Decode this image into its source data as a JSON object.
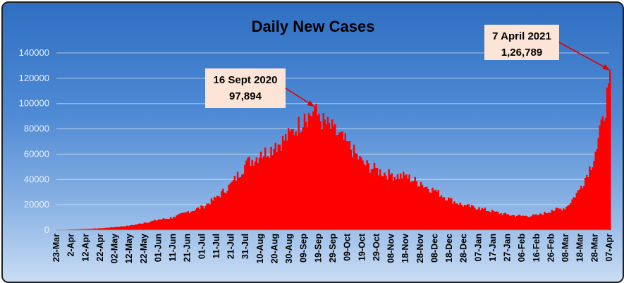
{
  "chart_data": {
    "type": "bar",
    "title": "Daily New Cases",
    "xlabel": "",
    "ylabel": "",
    "ylim": [
      0,
      140000
    ],
    "yticks": [
      0,
      20000,
      40000,
      60000,
      80000,
      100000,
      120000,
      140000
    ],
    "ytick_labels": [
      "0",
      "20000",
      "40000",
      "60000",
      "80000",
      "100000",
      "120000",
      "140000"
    ],
    "grid": true,
    "bar_color": "#ff0000",
    "x_start": "2020-03-23",
    "x_end": "2021-04-07",
    "x_tick_labels": [
      "23-Mar",
      "2-Apr",
      "12-Apr",
      "22-Apr",
      "02-May",
      "12-May",
      "22-May",
      "01-Jun",
      "11-Jun",
      "21-Jun",
      "01-Jul",
      "11-Jul",
      "21-Jul",
      "31-Jul",
      "10-Aug",
      "20-Aug",
      "30-Aug",
      "09-Sep",
      "19-Sep",
      "29-Sep",
      "09-Oct",
      "19-Oct",
      "29-Oct",
      "08-Nov",
      "18-Nov",
      "28-Nov",
      "08-Dec",
      "18-Dec",
      "28-Dec",
      "07-Jan",
      "17-Jan",
      "27-Jan",
      "06-Feb",
      "16-Feb",
      "26-Feb",
      "08-Mar",
      "18-Mar",
      "28-Mar",
      "07-Apr"
    ],
    "series_trend_points": [
      {
        "date": "2020-03-23",
        "value": 100
      },
      {
        "date": "2020-04-02",
        "value": 500
      },
      {
        "date": "2020-04-12",
        "value": 900
      },
      {
        "date": "2020-04-22",
        "value": 1500
      },
      {
        "date": "2020-05-02",
        "value": 2500
      },
      {
        "date": "2020-05-12",
        "value": 3600
      },
      {
        "date": "2020-05-22",
        "value": 6000
      },
      {
        "date": "2020-06-01",
        "value": 8500
      },
      {
        "date": "2020-06-11",
        "value": 10500
      },
      {
        "date": "2020-06-21",
        "value": 15000
      },
      {
        "date": "2020-07-01",
        "value": 19000
      },
      {
        "date": "2020-07-11",
        "value": 27000
      },
      {
        "date": "2020-07-21",
        "value": 38000
      },
      {
        "date": "2020-07-31",
        "value": 55000
      },
      {
        "date": "2020-08-10",
        "value": 62000
      },
      {
        "date": "2020-08-20",
        "value": 69000
      },
      {
        "date": "2020-08-30",
        "value": 78000
      },
      {
        "date": "2020-09-09",
        "value": 92000
      },
      {
        "date": "2020-09-16",
        "value": 97894
      },
      {
        "date": "2020-09-19",
        "value": 92000
      },
      {
        "date": "2020-09-29",
        "value": 82000
      },
      {
        "date": "2020-10-09",
        "value": 70000
      },
      {
        "date": "2020-10-19",
        "value": 55000
      },
      {
        "date": "2020-10-29",
        "value": 49000
      },
      {
        "date": "2020-11-08",
        "value": 45000
      },
      {
        "date": "2020-11-18",
        "value": 44000
      },
      {
        "date": "2020-11-28",
        "value": 38000
      },
      {
        "date": "2020-12-08",
        "value": 32000
      },
      {
        "date": "2020-12-18",
        "value": 25000
      },
      {
        "date": "2020-12-28",
        "value": 20000
      },
      {
        "date": "2021-01-07",
        "value": 18000
      },
      {
        "date": "2021-01-17",
        "value": 15000
      },
      {
        "date": "2021-01-27",
        "value": 12500
      },
      {
        "date": "2021-02-06",
        "value": 11500
      },
      {
        "date": "2021-02-16",
        "value": 12000
      },
      {
        "date": "2021-02-26",
        "value": 16000
      },
      {
        "date": "2021-03-08",
        "value": 18500
      },
      {
        "date": "2021-03-18",
        "value": 35000
      },
      {
        "date": "2021-03-28",
        "value": 62000
      },
      {
        "date": "2021-04-02",
        "value": 90000
      },
      {
        "date": "2021-04-06",
        "value": 116000
      },
      {
        "date": "2021-04-07",
        "value": 126789
      }
    ],
    "annotations": [
      {
        "line1": "16 Sept 2020",
        "line2": "97,894",
        "date": "2020-09-16",
        "value": 97894
      },
      {
        "line1": "7 April 2021",
        "line2": "1,26,789",
        "date": "2021-04-07",
        "value": 126789
      }
    ]
  }
}
